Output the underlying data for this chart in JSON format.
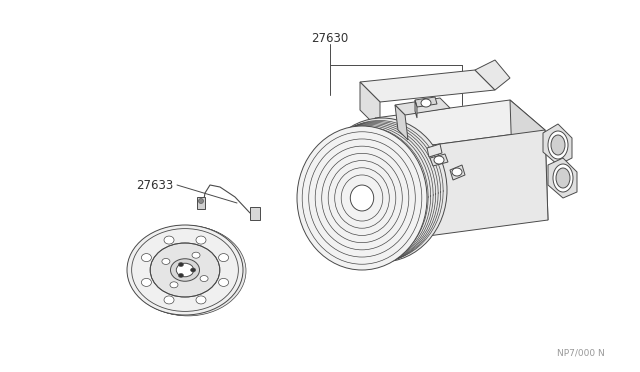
{
  "background_color": "#ffffff",
  "line_color": "#4a4a4a",
  "label_color": "#333333",
  "part_numbers": [
    "27630",
    "27633"
  ],
  "watermark": "NP7/000 N",
  "fig_width": 6.4,
  "fig_height": 3.72,
  "dpi": 100
}
